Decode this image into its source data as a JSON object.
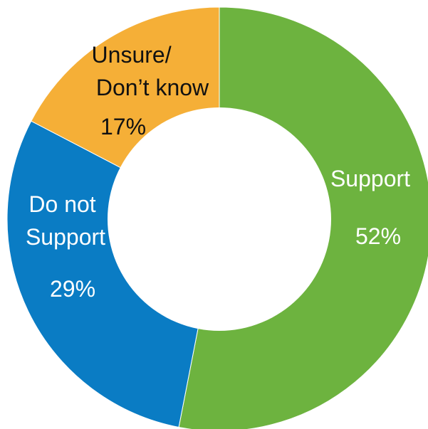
{
  "chart_data": {
    "type": "pie",
    "donut": true,
    "slices": [
      {
        "lines": [
          "Support"
        ],
        "pct_label": "52%",
        "value": 52,
        "color": "#6db33f",
        "text_color": "#ffffff"
      },
      {
        "lines": [
          "Do not",
          "Support"
        ],
        "pct_label": "29%",
        "value": 29,
        "color": "#0a7cc4",
        "text_color": "#ffffff"
      },
      {
        "lines": [
          "Unsure/",
          "Don’t know"
        ],
        "pct_label": "17%",
        "value": 17,
        "color": "#f5af37",
        "text_color": "#111111"
      }
    ]
  }
}
